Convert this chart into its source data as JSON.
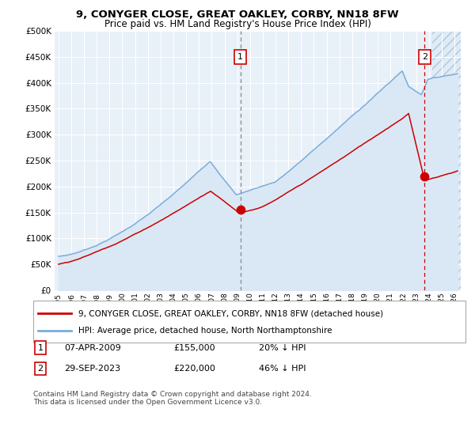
{
  "title": "9, CONYGER CLOSE, GREAT OAKLEY, CORBY, NN18 8FW",
  "subtitle": "Price paid vs. HM Land Registry's House Price Index (HPI)",
  "legend_line1": "9, CONYGER CLOSE, GREAT OAKLEY, CORBY, NN18 8FW (detached house)",
  "legend_line2": "HPI: Average price, detached house, North Northamptonshire",
  "annotation1_label": "1",
  "annotation1_date": "07-APR-2009",
  "annotation1_price": "£155,000",
  "annotation1_hpi": "20% ↓ HPI",
  "annotation2_label": "2",
  "annotation2_date": "29-SEP-2023",
  "annotation2_price": "£220,000",
  "annotation2_hpi": "46% ↓ HPI",
  "footnote": "Contains HM Land Registry data © Crown copyright and database right 2024.\nThis data is licensed under the Open Government Licence v3.0.",
  "hpi_color": "#7aaddc",
  "hpi_fill_color": "#dae8f5",
  "price_color": "#cc0000",
  "marker_color": "#cc0000",
  "background_color": "#ffffff",
  "plot_bg_color": "#e8f0f8",
  "grid_color": "#ffffff",
  "hatch_color": "#b0c8dc",
  "ylim": [
    0,
    500000
  ],
  "xmin": 1994.7,
  "xmax": 2026.5,
  "future_start": 2024.25
}
